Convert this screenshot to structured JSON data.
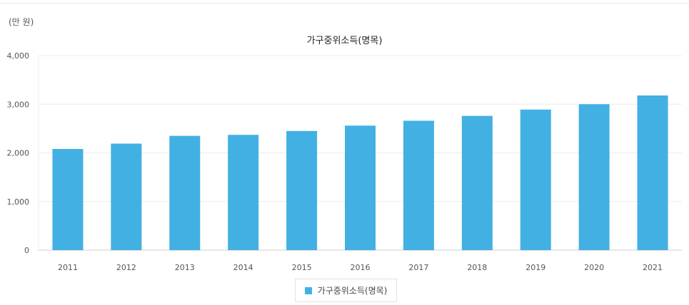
{
  "unit_label": "(만 원)",
  "chart_data": {
    "type": "bar",
    "title": "가구중위소득(명목)",
    "categories": [
      "2011",
      "2012",
      "2013",
      "2014",
      "2015",
      "2016",
      "2017",
      "2018",
      "2019",
      "2020",
      "2021"
    ],
    "series": [
      {
        "name": "가구중위소득(명목)",
        "color": "#42b0e3",
        "values": [
          2080,
          2190,
          2350,
          2370,
          2450,
          2560,
          2660,
          2760,
          2890,
          3000,
          3180
        ]
      }
    ],
    "yticks": [
      "0",
      "1,000",
      "2,000",
      "3,000",
      "4,000"
    ],
    "ylim": [
      0,
      4000
    ],
    "grid": true,
    "legend_position": "bottom-center"
  }
}
